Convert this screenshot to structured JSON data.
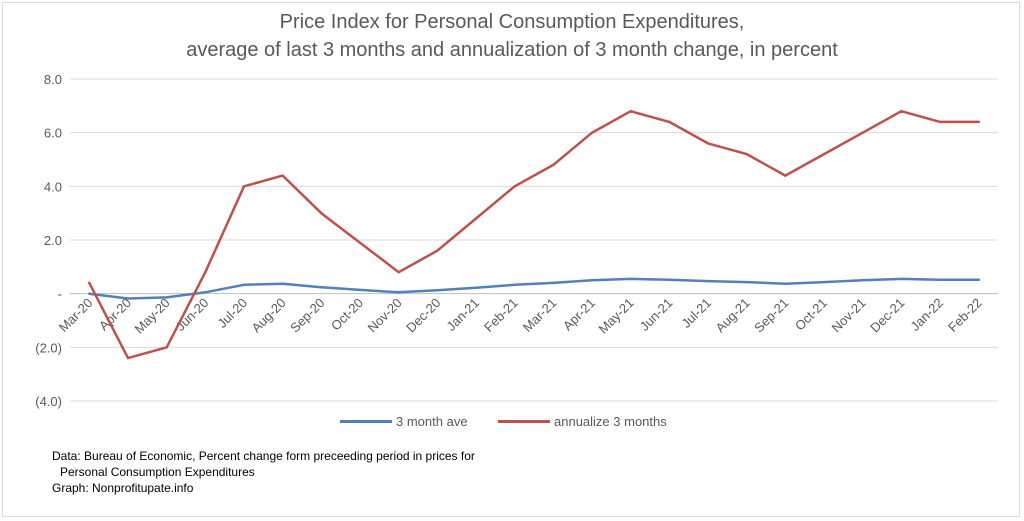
{
  "title_line1": "Price Index for Personal Consumption Expenditures,",
  "title_line2": "average of last 3 months and annualization of 3 month change, in percent",
  "chart_data": {
    "type": "line",
    "title": "Price Index for Personal Consumption Expenditures, average of last 3 months and annualization of 3 month change, in percent",
    "categories": [
      "Mar-20",
      "Apr-20",
      "May-20",
      "Jun-20",
      "Jul-20",
      "Aug-20",
      "Sep-20",
      "Oct-20",
      "Nov-20",
      "Dec-20",
      "Jan-21",
      "Feb-21",
      "Mar-21",
      "Apr-21",
      "May-21",
      "Jun-21",
      "Jul-21",
      "Aug-21",
      "Sep-21",
      "Oct-21",
      "Nov-21",
      "Dec-21",
      "Jan-22",
      "Feb-22"
    ],
    "y_ticks": [
      {
        "value": 8,
        "label": "8.0"
      },
      {
        "value": 6,
        "label": "6.0"
      },
      {
        "value": 4,
        "label": "4.0"
      },
      {
        "value": 2,
        "label": "2.0"
      },
      {
        "value": 0,
        "label": "-"
      },
      {
        "value": -2,
        "label": "(2.0)"
      },
      {
        "value": -4,
        "label": "(4.0)"
      }
    ],
    "ylim": [
      -4,
      8
    ],
    "grid": true,
    "legend_position": "bottom",
    "series": [
      {
        "name": "3 month ave",
        "color": "#4f81bd",
        "values": [
          0.0,
          -0.18,
          -0.14,
          0.05,
          0.33,
          0.37,
          0.24,
          0.14,
          0.05,
          0.13,
          0.22,
          0.33,
          0.4,
          0.5,
          0.55,
          0.52,
          0.47,
          0.43,
          0.37,
          0.43,
          0.5,
          0.55,
          0.52,
          0.52
        ]
      },
      {
        "name": "annualize 3 months",
        "color": "#c0504d",
        "values": [
          0.4,
          -2.4,
          -2.0,
          0.8,
          4.0,
          4.4,
          3.0,
          1.9,
          0.8,
          1.6,
          2.8,
          4.0,
          4.8,
          6.0,
          6.8,
          6.4,
          5.6,
          5.2,
          4.4,
          5.2,
          6.0,
          6.8,
          6.4,
          6.4
        ]
      }
    ]
  },
  "note": {
    "line1": "Data: Bureau of Economic, Percent change form preceeding period in prices for",
    "line2": "Personal Consumption Expenditures",
    "line3": "Graph:  Nonprofitupate.info"
  }
}
